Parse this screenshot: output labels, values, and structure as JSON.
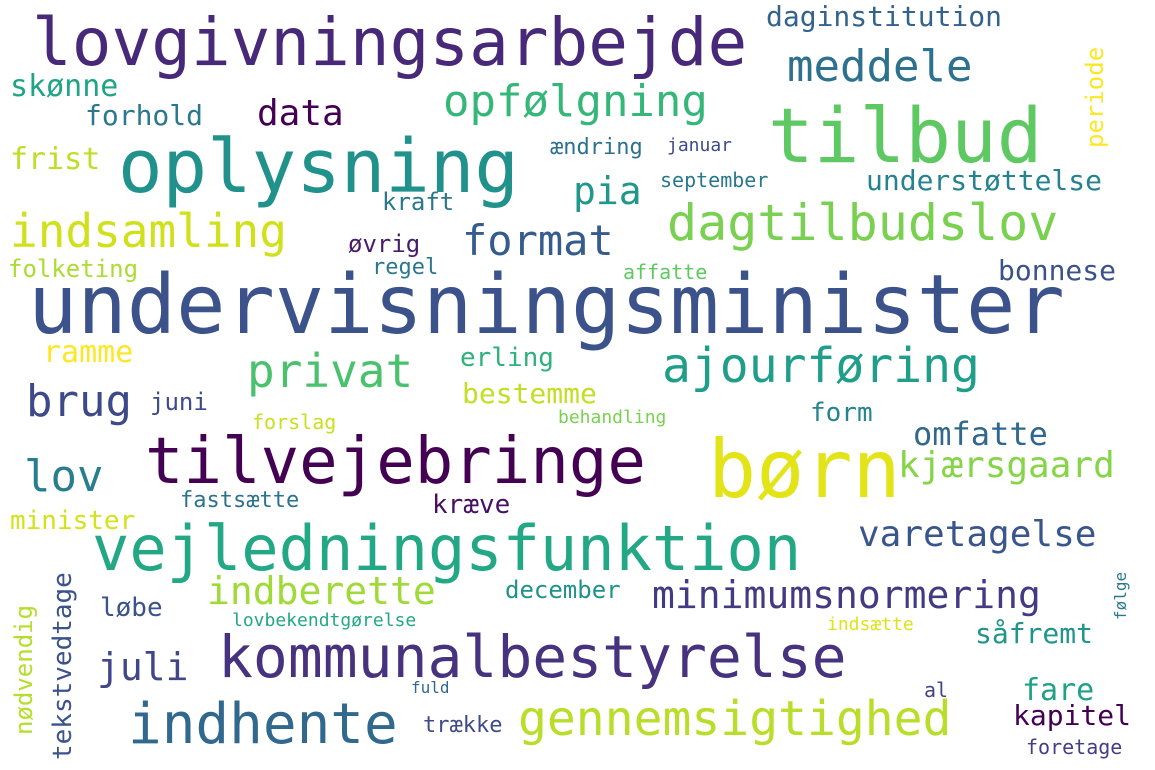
{
  "words": [
    {
      "text": "undervisningsminister",
      "color": "#3b528b"
    },
    {
      "text": "lovgivningsarbejde",
      "color": "#482878"
    },
    {
      "text": "oplysning",
      "color": "#21918c"
    },
    {
      "text": "tilbud",
      "color": "#5ec962"
    },
    {
      "text": "børn",
      "color": "#e3e418"
    },
    {
      "text": "tilvejebringe",
      "color": "#440154"
    },
    {
      "text": "vejledningsfunktion",
      "color": "#22a884"
    },
    {
      "text": "kommunalbestyrelse",
      "color": "#46327e"
    },
    {
      "text": "indhente",
      "color": "#31688e"
    },
    {
      "text": "gennemsigtighed",
      "color": "#b8de29"
    },
    {
      "text": "dagtilbudslov",
      "color": "#7ad151"
    },
    {
      "text": "ajourføring",
      "color": "#1f9e89"
    },
    {
      "text": "indsamling",
      "color": "#d0e11c"
    },
    {
      "text": "opfølgning",
      "color": "#35b779"
    },
    {
      "text": "meddele",
      "color": "#2c728e"
    },
    {
      "text": "privat",
      "color": "#4ac16d"
    },
    {
      "text": "format",
      "color": "#365c8d"
    },
    {
      "text": "minimumsnormering",
      "color": "#443983"
    },
    {
      "text": "varetagelse",
      "color": "#39568c"
    },
    {
      "text": "indberette",
      "color": "#a0da39"
    },
    {
      "text": "kjærsgaard",
      "color": "#86d549"
    },
    {
      "text": "daginstitution",
      "color": "#33638d"
    },
    {
      "text": "understøttelse",
      "color": "#26828e"
    },
    {
      "text": "data",
      "color": "#440154"
    },
    {
      "text": "brug",
      "color": "#3e4989"
    },
    {
      "text": "lov",
      "color": "#277f8e"
    },
    {
      "text": "pia",
      "color": "#1f978b"
    },
    {
      "text": "omfatte",
      "color": "#31688e"
    },
    {
      "text": "juli",
      "color": "#404688"
    },
    {
      "text": "ramme",
      "color": "#fde725"
    },
    {
      "text": "erling",
      "color": "#2db27d"
    },
    {
      "text": "bestemme",
      "color": "#c2df23"
    },
    {
      "text": "bonnese",
      "color": "#3b528b"
    },
    {
      "text": "skønne",
      "color": "#20a486"
    },
    {
      "text": "forhold",
      "color": "#2a788e"
    },
    {
      "text": "frist",
      "color": "#bddf26"
    },
    {
      "text": "folketing",
      "color": "#addc30"
    },
    {
      "text": "minister",
      "color": "#d2e21b"
    },
    {
      "text": "fastsætte",
      "color": "#2c728e"
    },
    {
      "text": "kræve",
      "color": "#471063"
    },
    {
      "text": "form",
      "color": "#25848e"
    },
    {
      "text": "juni",
      "color": "#3e4a89"
    },
    {
      "text": "løbe",
      "color": "#3b528b"
    },
    {
      "text": "såfremt",
      "color": "#1f958b"
    },
    {
      "text": "fare",
      "color": "#1fa187"
    },
    {
      "text": "kapitel",
      "color": "#440154"
    },
    {
      "text": "december",
      "color": "#20928c"
    },
    {
      "text": "øvrig",
      "color": "#481b6d"
    },
    {
      "text": "regel",
      "color": "#2a788e"
    },
    {
      "text": "kraft",
      "color": "#2a788e"
    },
    {
      "text": "ændring",
      "color": "#2c728e"
    },
    {
      "text": "januar",
      "color": "#3e4a89"
    },
    {
      "text": "september",
      "color": "#2a788e"
    },
    {
      "text": "affatte",
      "color": "#5ec962"
    },
    {
      "text": "forslag",
      "color": "#c8e020"
    },
    {
      "text": "behandling",
      "color": "#7ad151"
    },
    {
      "text": "lovbekendtgørelse",
      "color": "#22a884"
    },
    {
      "text": "indsætte",
      "color": "#dde318"
    },
    {
      "text": "fuld",
      "color": "#31688e"
    },
    {
      "text": "al",
      "color": "#414487"
    },
    {
      "text": "trække",
      "color": "#3e4a89"
    },
    {
      "text": "foretage",
      "color": "#433e85"
    },
    {
      "text": "periode",
      "color": "#fde725"
    },
    {
      "text": "tekstvedtage",
      "color": "#3b528b"
    },
    {
      "text": "nødvendig",
      "color": "#b5de2b"
    },
    {
      "text": "følge",
      "color": "#2a788e"
    }
  ]
}
